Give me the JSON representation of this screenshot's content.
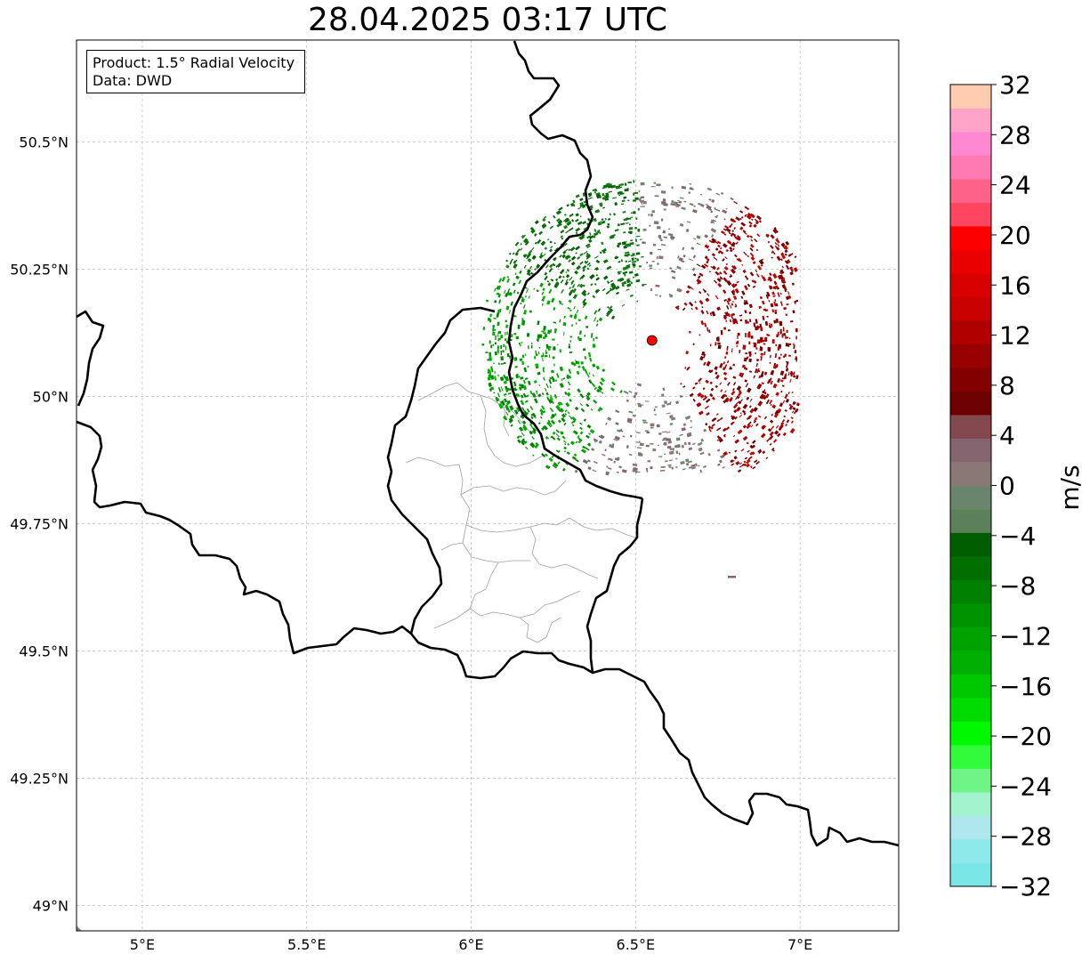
{
  "title": "28.04.2025 03:17 UTC",
  "info": {
    "product_line": "Product: 1.5° Radial Velocity",
    "data_line": "Data: DWD"
  },
  "map": {
    "lon_range": [
      4.8,
      7.3
    ],
    "lat_range": [
      48.95,
      50.7
    ],
    "lon_ticks": [
      {
        "value": 5.0,
        "label": "5°E"
      },
      {
        "value": 5.5,
        "label": "5.5°E"
      },
      {
        "value": 6.0,
        "label": "6°E"
      },
      {
        "value": 6.5,
        "label": "6.5°E"
      },
      {
        "value": 7.0,
        "label": "7°E"
      }
    ],
    "lat_ticks": [
      {
        "value": 49.0,
        "label": "49°N"
      },
      {
        "value": 49.25,
        "label": "49.25°N"
      },
      {
        "value": 49.5,
        "label": "49.5°N"
      },
      {
        "value": 49.75,
        "label": "49.75°N"
      },
      {
        "value": 50.0,
        "label": "50°N"
      },
      {
        "value": 50.25,
        "label": "50.25°N"
      },
      {
        "value": 50.5,
        "label": "50.5°N"
      }
    ],
    "radar_site": {
      "lon": 6.55,
      "lat": 50.11,
      "color": "#ff0000"
    },
    "border_color": "#000000",
    "admin_color": "#a0a0a0",
    "grid_color": "#b0b0b0"
  },
  "colorbar": {
    "unit_label": "m/s",
    "min": -32,
    "max": 32,
    "ticks": [
      {
        "value": 32,
        "label": "32"
      },
      {
        "value": 28,
        "label": "28"
      },
      {
        "value": 24,
        "label": "24"
      },
      {
        "value": 20,
        "label": "20"
      },
      {
        "value": 16,
        "label": "16"
      },
      {
        "value": 12,
        "label": "12"
      },
      {
        "value": 8,
        "label": "8"
      },
      {
        "value": 4,
        "label": "4"
      },
      {
        "value": 0,
        "label": "0"
      },
      {
        "value": -4,
        "label": "−4"
      },
      {
        "value": -8,
        "label": "−8"
      },
      {
        "value": -12,
        "label": "−12"
      },
      {
        "value": -16,
        "label": "−16"
      },
      {
        "value": -20,
        "label": "−20"
      },
      {
        "value": -24,
        "label": "−24"
      },
      {
        "value": -28,
        "label": "−28"
      },
      {
        "value": -32,
        "label": "−32"
      }
    ],
    "colors": [
      "#7ae6e6",
      "#8ee9ea",
      "#aee8ee",
      "#a3f3cf",
      "#6ef586",
      "#32fb3c",
      "#00f900",
      "#00dc00",
      "#00c800",
      "#00b000",
      "#00a200",
      "#009300",
      "#008000",
      "#006f00",
      "#005d00",
      "#5c805a",
      "#6a856b",
      "#8a7877",
      "#856570",
      "#83494f",
      "#6d0000",
      "#830000",
      "#990000",
      "#b00000",
      "#c80000",
      "#d80000",
      "#ea0000",
      "#fc0000",
      "#ff4560",
      "#ff6288",
      "#ff7ab0",
      "#ff88d2",
      "#ffa3c9",
      "#ffcbb1"
    ]
  }
}
